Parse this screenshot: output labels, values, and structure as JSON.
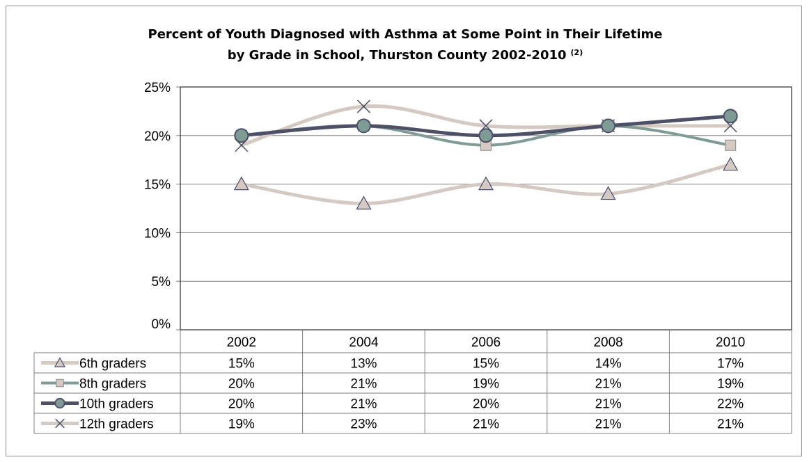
{
  "chart_data": {
    "type": "line",
    "title_line1": "Percent of Youth Diagnosed with Asthma at Some Point in Their Lifetime",
    "title_line2": "by Grade in School, Thurston County 2002-2010",
    "title_superscript": "(2)",
    "categories": [
      "2002",
      "2004",
      "2006",
      "2008",
      "2010"
    ],
    "ylim": [
      0,
      25
    ],
    "y_ticks": [
      "0%",
      "5%",
      "10%",
      "15%",
      "20%",
      "25%"
    ],
    "grid": true,
    "legend_placement": "data-table",
    "series": [
      {
        "name": "6th graders",
        "values": [
          15,
          13,
          15,
          14,
          17
        ],
        "labels": [
          "15%",
          "13%",
          "15%",
          "14%",
          "17%"
        ],
        "color": "#d4c9c3",
        "marker": "triangle",
        "marker_fill": "#d4c9c3",
        "marker_stroke": "#4a4a6a"
      },
      {
        "name": "8th graders",
        "values": [
          20,
          21,
          19,
          21,
          19
        ],
        "labels": [
          "20%",
          "21%",
          "19%",
          "21%",
          "19%"
        ],
        "color": "#7f9b96",
        "marker": "square",
        "marker_fill": "#d4c9c3",
        "marker_stroke": "#8a8a8a"
      },
      {
        "name": "10th graders",
        "values": [
          20,
          21,
          20,
          21,
          22
        ],
        "labels": [
          "20%",
          "21%",
          "20%",
          "21%",
          "22%"
        ],
        "color": "#4e5068",
        "marker": "circle",
        "marker_fill": "#7f9b96",
        "marker_stroke": "#4e5068"
      },
      {
        "name": "12th graders",
        "values": [
          19,
          23,
          21,
          21,
          21
        ],
        "labels": [
          "19%",
          "23%",
          "21%",
          "21%",
          "21%"
        ],
        "color": "#d4c9c3",
        "marker": "x",
        "marker_fill": "none",
        "marker_stroke": "#4e5068"
      }
    ]
  }
}
